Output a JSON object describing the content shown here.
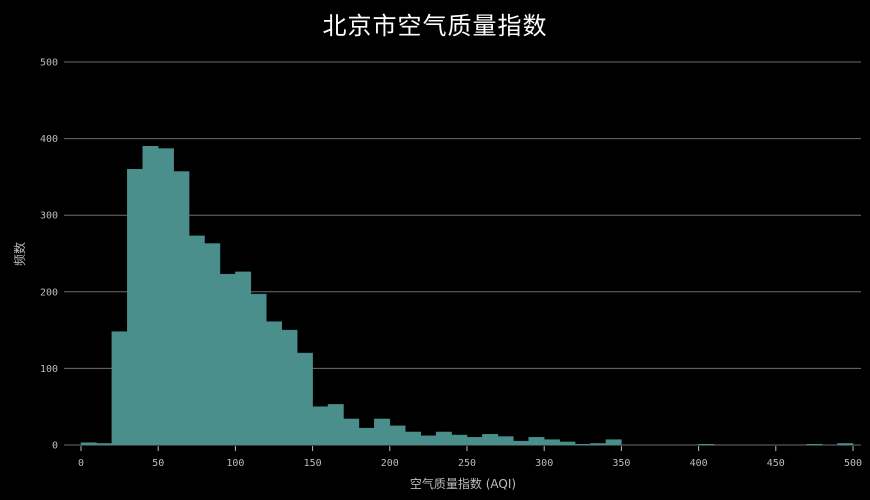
{
  "chart_data": {
    "type": "bar",
    "title": "北京市空气质量指数",
    "xlabel": "空气质量指数 (AQI)",
    "ylabel": "频数",
    "xlim": [
      0,
      500
    ],
    "ylim": [
      0,
      500
    ],
    "x_ticks": [
      "0",
      "50",
      "100",
      "150",
      "200",
      "250",
      "300",
      "350",
      "400",
      "450",
      "500"
    ],
    "y_ticks": [
      "0",
      "100",
      "200",
      "300",
      "400",
      "500"
    ],
    "grid": "horizontal",
    "bar_color": "#4a8f8c",
    "bins": [
      {
        "x0": 0,
        "x1": 10,
        "count": 3
      },
      {
        "x0": 10,
        "x1": 20,
        "count": 2
      },
      {
        "x0": 20,
        "x1": 30,
        "count": 148
      },
      {
        "x0": 30,
        "x1": 40,
        "count": 360
      },
      {
        "x0": 40,
        "x1": 50,
        "count": 390
      },
      {
        "x0": 50,
        "x1": 60,
        "count": 387
      },
      {
        "x0": 60,
        "x1": 70,
        "count": 357
      },
      {
        "x0": 70,
        "x1": 80,
        "count": 273
      },
      {
        "x0": 80,
        "x1": 90,
        "count": 263
      },
      {
        "x0": 90,
        "x1": 100,
        "count": 223
      },
      {
        "x0": 100,
        "x1": 110,
        "count": 226
      },
      {
        "x0": 110,
        "x1": 120,
        "count": 197
      },
      {
        "x0": 120,
        "x1": 130,
        "count": 161
      },
      {
        "x0": 130,
        "x1": 140,
        "count": 150
      },
      {
        "x0": 140,
        "x1": 150,
        "count": 120
      },
      {
        "x0": 150,
        "x1": 160,
        "count": 50
      },
      {
        "x0": 160,
        "x1": 170,
        "count": 53
      },
      {
        "x0": 170,
        "x1": 180,
        "count": 34
      },
      {
        "x0": 180,
        "x1": 190,
        "count": 22
      },
      {
        "x0": 190,
        "x1": 200,
        "count": 34
      },
      {
        "x0": 200,
        "x1": 210,
        "count": 25
      },
      {
        "x0": 210,
        "x1": 220,
        "count": 17
      },
      {
        "x0": 220,
        "x1": 230,
        "count": 12
      },
      {
        "x0": 230,
        "x1": 240,
        "count": 17
      },
      {
        "x0": 240,
        "x1": 250,
        "count": 13
      },
      {
        "x0": 250,
        "x1": 260,
        "count": 10
      },
      {
        "x0": 260,
        "x1": 270,
        "count": 14
      },
      {
        "x0": 270,
        "x1": 280,
        "count": 11
      },
      {
        "x0": 280,
        "x1": 290,
        "count": 5
      },
      {
        "x0": 290,
        "x1": 300,
        "count": 10
      },
      {
        "x0": 300,
        "x1": 310,
        "count": 7
      },
      {
        "x0": 310,
        "x1": 320,
        "count": 4
      },
      {
        "x0": 320,
        "x1": 330,
        "count": 1
      },
      {
        "x0": 330,
        "x1": 340,
        "count": 2
      },
      {
        "x0": 340,
        "x1": 350,
        "count": 7
      },
      {
        "x0": 400,
        "x1": 410,
        "count": 1
      },
      {
        "x0": 470,
        "x1": 480,
        "count": 1
      },
      {
        "x0": 490,
        "x1": 500,
        "count": 2
      }
    ]
  }
}
